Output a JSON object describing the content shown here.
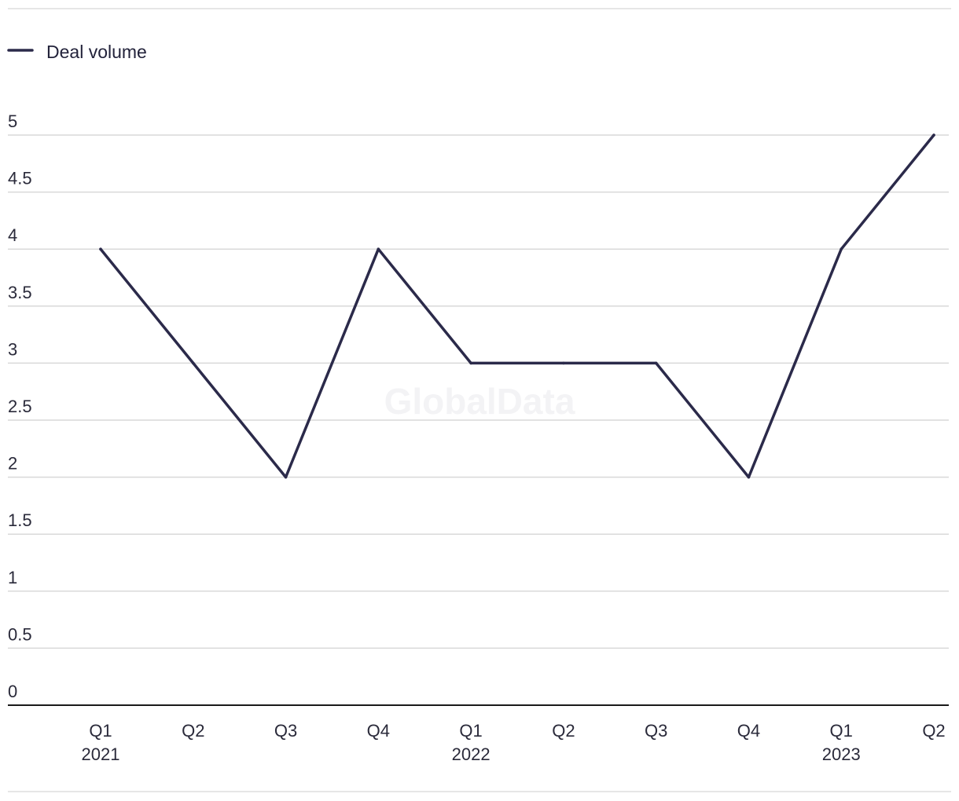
{
  "legend": {
    "label": "Deal volume"
  },
  "watermark": "GlobalData",
  "colors": {
    "line": "#2b2a4a",
    "grid": "#d9d9d9",
    "axis": "#1a1a1a",
    "frame": "#dddddd"
  },
  "chart_data": {
    "type": "line",
    "title": "",
    "xlabel": "",
    "ylabel": "",
    "categories": [
      "Q1 2021",
      "Q2 2021",
      "Q3 2021",
      "Q4 2021",
      "Q1 2022",
      "Q2 2022",
      "Q3 2022",
      "Q4 2022",
      "Q1 2023",
      "Q2 2023"
    ],
    "x_tick_labels": [
      {
        "quarter": "Q1",
        "year": "2021"
      },
      {
        "quarter": "Q2",
        "year": ""
      },
      {
        "quarter": "Q3",
        "year": ""
      },
      {
        "quarter": "Q4",
        "year": ""
      },
      {
        "quarter": "Q1",
        "year": "2022"
      },
      {
        "quarter": "Q2",
        "year": ""
      },
      {
        "quarter": "Q3",
        "year": ""
      },
      {
        "quarter": "Q4",
        "year": ""
      },
      {
        "quarter": "Q1",
        "year": "2023"
      },
      {
        "quarter": "Q2",
        "year": ""
      }
    ],
    "y_ticks": [
      "0",
      "0.5",
      "1",
      "1.5",
      "2",
      "2.5",
      "3",
      "3.5",
      "4",
      "4.5",
      "5"
    ],
    "ylim": [
      0,
      5
    ],
    "grid": true,
    "legend_position": "top-left",
    "series": [
      {
        "name": "Deal volume",
        "values": [
          4,
          3,
          2,
          4,
          3,
          3,
          3,
          2,
          4,
          5
        ]
      }
    ]
  }
}
